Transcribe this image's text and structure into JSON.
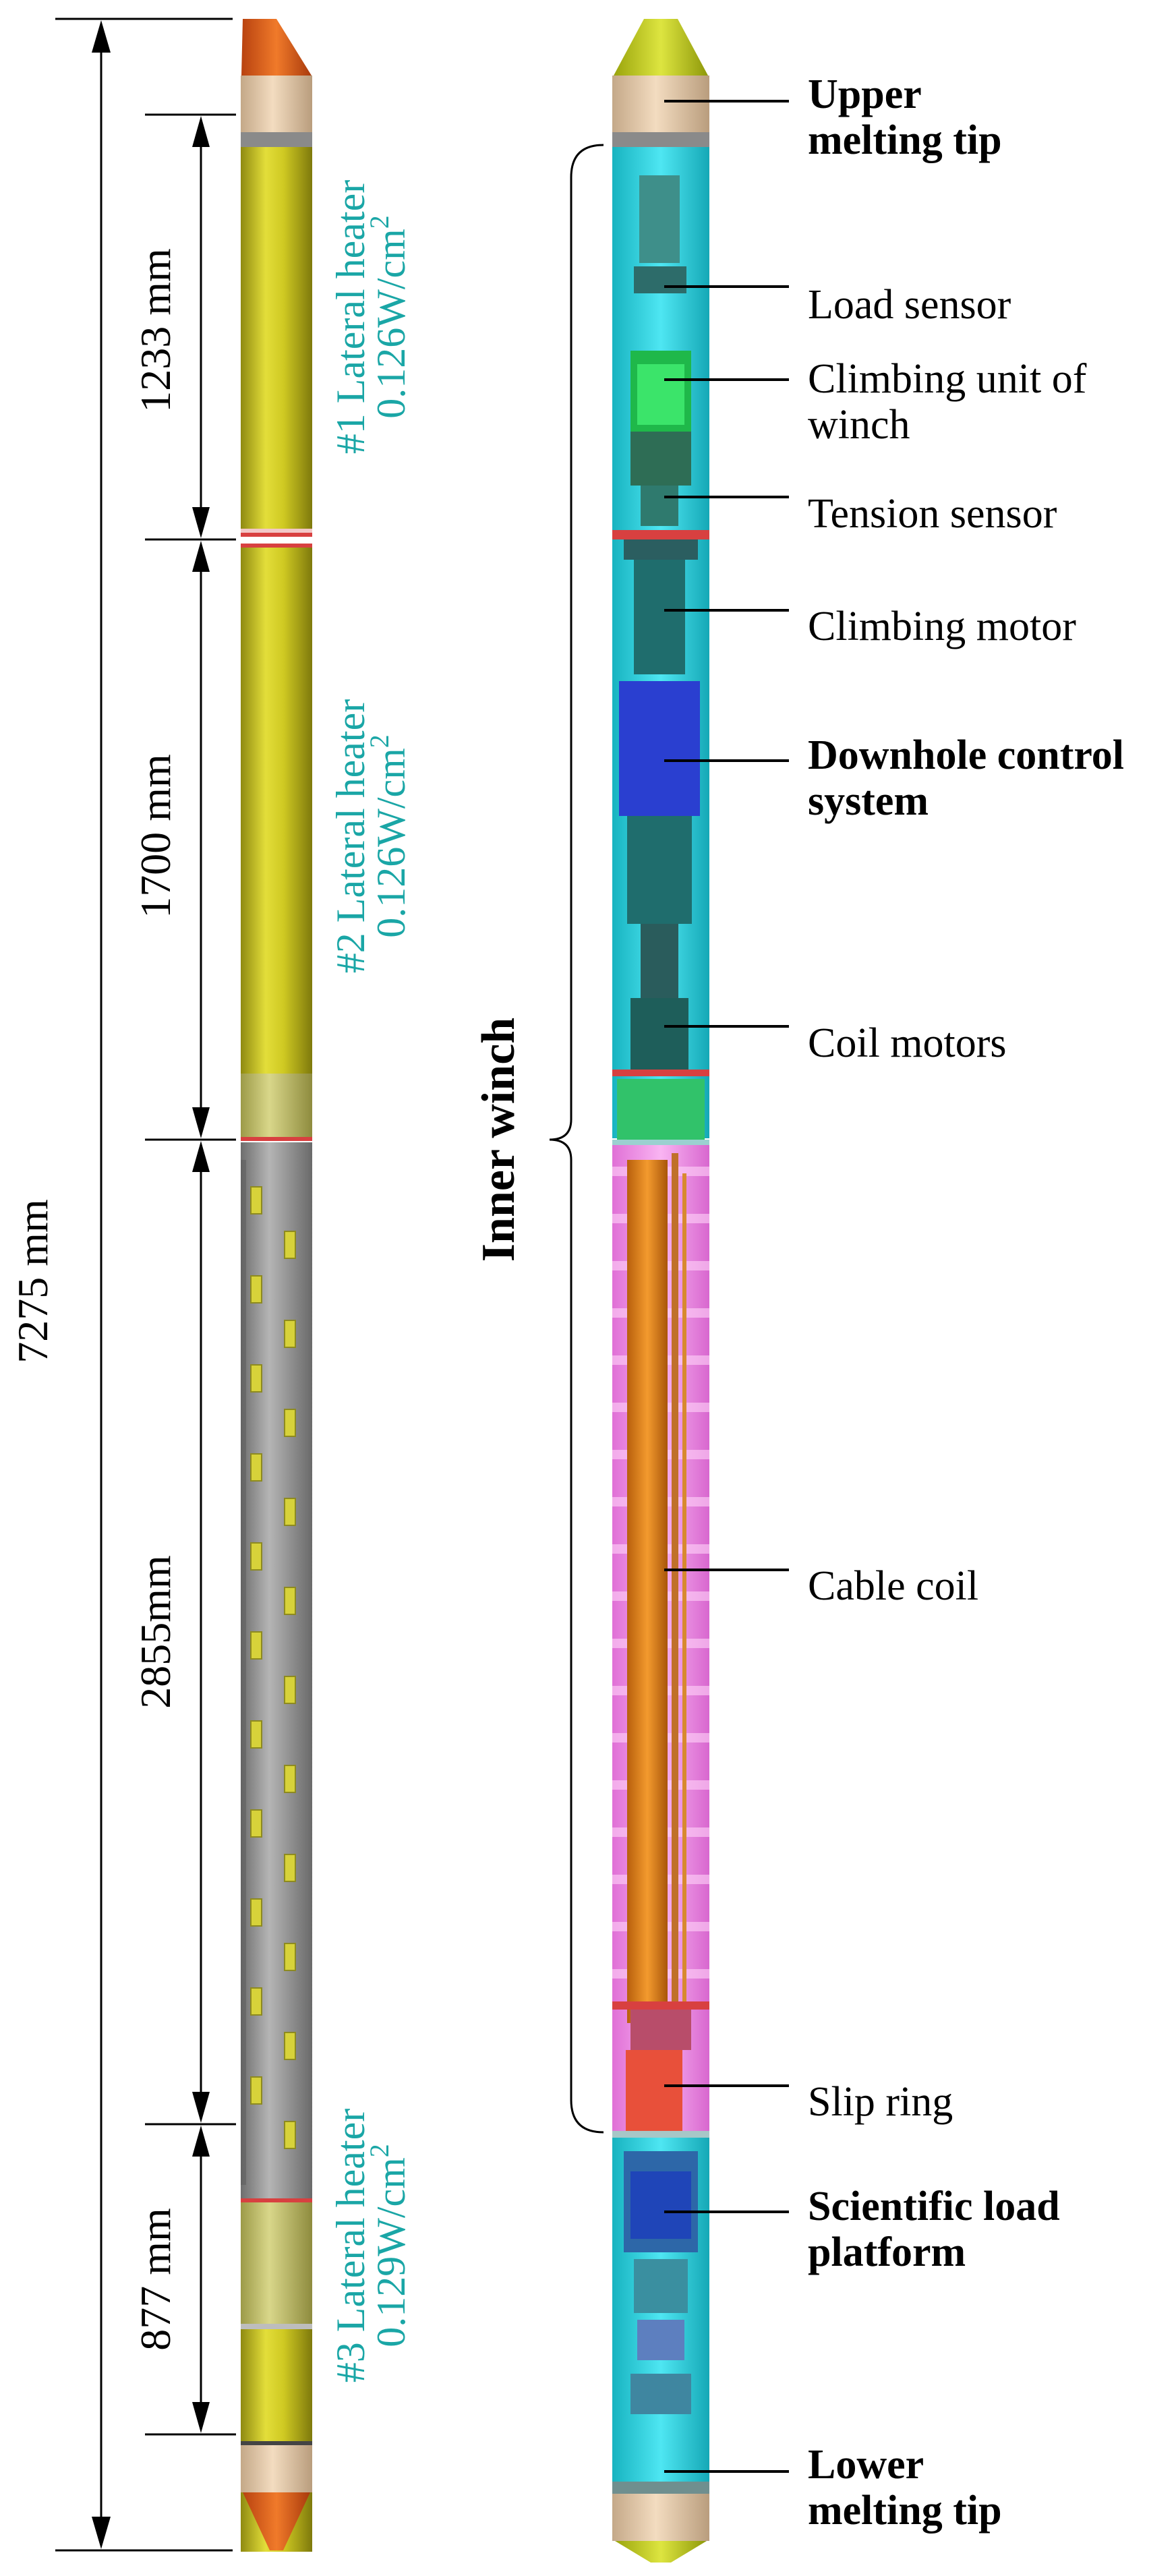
{
  "left_probe": {
    "total_length": "7275 mm",
    "segments": [
      {
        "length": "1233 mm",
        "heater": "#1 Lateral heater",
        "power": "0.126W/cm",
        "unit_exp": "2"
      },
      {
        "length": "1700 mm",
        "heater": "#2 Lateral heater",
        "power": "0.126W/cm",
        "unit_exp": "2"
      },
      {
        "length": "2855mm",
        "heater": "",
        "power": "",
        "unit_exp": ""
      },
      {
        "length": "877 mm",
        "heater": "#3 Lateral heater",
        "power": "0.129W/cm",
        "unit_exp": "2"
      }
    ]
  },
  "right_probe": {
    "labels": [
      {
        "text": "Upper\nmelting tip",
        "bold": true
      },
      {
        "text": "Load sensor",
        "bold": false
      },
      {
        "text": "Climbing unit of\nwinch",
        "bold": false
      },
      {
        "text": "Tension sensor",
        "bold": false
      },
      {
        "text": "Climbing motor",
        "bold": false
      },
      {
        "text": "Downhole control\nsystem",
        "bold": true
      },
      {
        "text": "Coil motors",
        "bold": false
      },
      {
        "text": "Cable coil",
        "bold": false
      },
      {
        "text": "Slip ring",
        "bold": false
      },
      {
        "text": "Scientific load\nplatform",
        "bold": true
      },
      {
        "text": "Lower\nmelting tip",
        "bold": true
      }
    ],
    "bracket_label": "Inner winch"
  },
  "colors": {
    "shell_yellow": "#c9c41c",
    "shell_grey": "#9a9a9a",
    "tip_orange": "#e2601a",
    "tip_cream": "#e9cfb0",
    "tip_lime": "#c8d21a",
    "winch_cyan": "#22d2e0",
    "coil_pink": "#f08ae6",
    "coil_orange": "#e9891f",
    "control_blue": "#2a3fd0",
    "heater_text": "#1aa6a6"
  }
}
